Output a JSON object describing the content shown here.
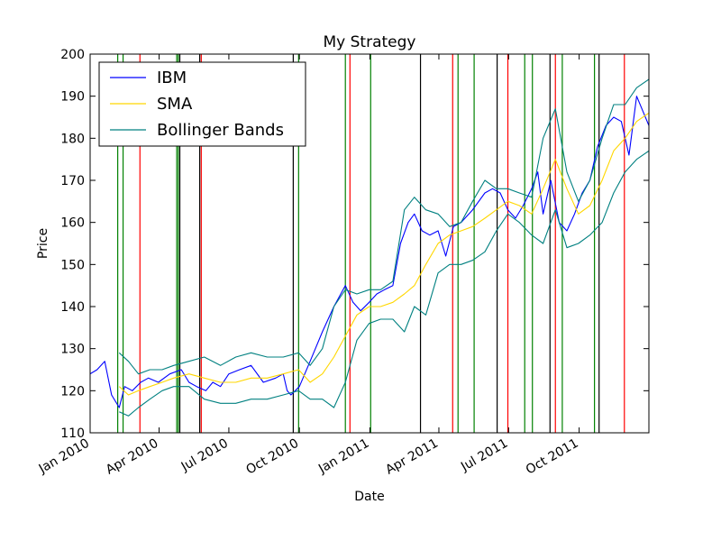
{
  "chart_data": {
    "type": "line",
    "title": "My Strategy",
    "xlabel": "Date",
    "ylabel": "Price",
    "x_range": [
      "2010-01-01",
      "2011-12-31"
    ],
    "ylim": [
      110,
      200
    ],
    "y_ticks": [
      110,
      120,
      130,
      140,
      150,
      160,
      170,
      180,
      190,
      200
    ],
    "x_ticks": [
      {
        "date": "2010-01-01",
        "label": "Jan 2010"
      },
      {
        "date": "2010-04-01",
        "label": "Apr 2010"
      },
      {
        "date": "2010-07-01",
        "label": "Jul 2010"
      },
      {
        "date": "2010-10-01",
        "label": "Oct 2010"
      },
      {
        "date": "2011-01-01",
        "label": "Jan 2011"
      },
      {
        "date": "2011-04-01",
        "label": "Apr 2011"
      },
      {
        "date": "2011-07-01",
        "label": "Jul 2011"
      },
      {
        "date": "2011-10-01",
        "label": "Oct 2011"
      }
    ],
    "grid": false,
    "legend_position": "top-left",
    "legend": [
      "IBM",
      "SMA",
      "Bollinger Bands"
    ],
    "colors": {
      "ibm": "#0000ff",
      "sma": "#ffd700",
      "bands": "#008080",
      "long_entry": "#008000",
      "short_entry": "#ff0000",
      "exit": "#000000"
    },
    "series": [
      {
        "name": "IBM",
        "x": [
          "2010-01-01",
          "2010-01-10",
          "2010-01-20",
          "2010-01-29",
          "2010-02-08",
          "2010-02-15",
          "2010-02-25",
          "2010-03-08",
          "2010-03-18",
          "2010-03-31",
          "2010-04-15",
          "2010-04-30",
          "2010-05-10",
          "2010-05-20",
          "2010-06-01",
          "2010-06-10",
          "2010-06-20",
          "2010-07-01",
          "2010-07-15",
          "2010-07-30",
          "2010-08-15",
          "2010-08-31",
          "2010-09-10",
          "2010-09-15",
          "2010-09-20",
          "2010-10-01",
          "2010-10-15",
          "2010-10-31",
          "2010-11-15",
          "2010-11-30",
          "2010-12-10",
          "2010-12-20",
          "2010-12-31",
          "2011-01-10",
          "2011-01-20",
          "2011-01-31",
          "2011-02-10",
          "2011-02-20",
          "2011-02-28",
          "2011-03-10",
          "2011-03-20",
          "2011-03-31",
          "2011-04-10",
          "2011-04-20",
          "2011-04-30",
          "2011-05-15",
          "2011-05-31",
          "2011-06-10",
          "2011-06-20",
          "2011-06-30",
          "2011-07-10",
          "2011-07-20",
          "2011-07-31",
          "2011-08-08",
          "2011-08-15",
          "2011-08-25",
          "2011-09-05",
          "2011-09-15",
          "2011-09-25",
          "2011-10-05",
          "2011-10-15",
          "2011-10-25",
          "2011-11-05",
          "2011-11-15",
          "2011-11-25",
          "2011-12-05",
          "2011-12-15",
          "2011-12-31"
        ],
        "y": [
          124,
          125,
          127,
          119,
          116,
          121,
          120,
          122,
          123,
          122,
          124,
          125,
          122,
          121,
          120,
          122,
          121,
          124,
          125,
          126,
          122,
          123,
          124,
          120,
          119,
          121,
          127,
          134,
          140,
          145,
          141,
          139,
          141,
          143,
          144,
          145,
          155,
          160,
          162,
          158,
          157,
          158,
          152,
          159,
          160,
          163,
          167,
          168,
          167,
          163,
          161,
          164,
          168,
          172,
          162,
          170,
          160,
          158,
          162,
          167,
          170,
          178,
          183,
          185,
          184,
          176,
          190,
          183
        ]
      },
      {
        "name": "SMA",
        "x": [
          "2010-02-08",
          "2010-02-20",
          "2010-03-05",
          "2010-03-20",
          "2010-04-05",
          "2010-04-20",
          "2010-05-10",
          "2010-05-30",
          "2010-06-20",
          "2010-07-10",
          "2010-07-30",
          "2010-08-20",
          "2010-09-10",
          "2010-09-30",
          "2010-10-15",
          "2010-10-31",
          "2010-11-15",
          "2010-11-30",
          "2010-12-15",
          "2010-12-31",
          "2011-01-15",
          "2011-01-31",
          "2011-02-15",
          "2011-02-28",
          "2011-03-15",
          "2011-03-31",
          "2011-04-15",
          "2011-04-30",
          "2011-05-15",
          "2011-05-31",
          "2011-06-15",
          "2011-06-30",
          "2011-07-15",
          "2011-07-31",
          "2011-08-15",
          "2011-08-31",
          "2011-09-15",
          "2011-09-30",
          "2011-10-15",
          "2011-10-31",
          "2011-11-15",
          "2011-11-30",
          "2011-12-15",
          "2011-12-31"
        ],
        "y": [
          121,
          119,
          120,
          121,
          122,
          123,
          124,
          123,
          122,
          122,
          123,
          123,
          124,
          125,
          122,
          124,
          128,
          133,
          138,
          140,
          140,
          141,
          143,
          145,
          150,
          155,
          157,
          158,
          159,
          161,
          163,
          165,
          164,
          162,
          168,
          175,
          168,
          162,
          164,
          170,
          177,
          180,
          184,
          186
        ]
      },
      {
        "name": "Bollinger Bands",
        "x": [
          "2010-02-08",
          "2010-02-20",
          "2010-03-05",
          "2010-03-20",
          "2010-04-05",
          "2010-04-20",
          "2010-05-10",
          "2010-05-30",
          "2010-06-20",
          "2010-07-10",
          "2010-07-30",
          "2010-08-20",
          "2010-09-10",
          "2010-09-30",
          "2010-10-15",
          "2010-10-31",
          "2010-11-15",
          "2010-11-30",
          "2010-12-15",
          "2010-12-31",
          "2011-01-15",
          "2011-01-31",
          "2011-02-15",
          "2011-02-28",
          "2011-03-15",
          "2011-03-31",
          "2011-04-15",
          "2011-04-30",
          "2011-05-15",
          "2011-05-31",
          "2011-06-15",
          "2011-06-30",
          "2011-07-15",
          "2011-07-31",
          "2011-08-15",
          "2011-08-31",
          "2011-09-15",
          "2011-09-30",
          "2011-10-15",
          "2011-10-31",
          "2011-11-15",
          "2011-11-30",
          "2011-12-15",
          "2011-12-31"
        ],
        "y": [
          129,
          127,
          124,
          125,
          125,
          126,
          127,
          128,
          126,
          128,
          129,
          128,
          128,
          129,
          126,
          130,
          140,
          144,
          143,
          144,
          144,
          146,
          163,
          166,
          163,
          162,
          159,
          160,
          165,
          170,
          168,
          168,
          167,
          166,
          180,
          187,
          172,
          165,
          170,
          180,
          188,
          188,
          192,
          194
        ]
      },
      {
        "name": "",
        "x": [
          "2010-02-08",
          "2010-02-20",
          "2010-03-05",
          "2010-03-20",
          "2010-04-05",
          "2010-04-20",
          "2010-05-10",
          "2010-05-30",
          "2010-06-20",
          "2010-07-10",
          "2010-07-30",
          "2010-08-20",
          "2010-09-10",
          "2010-09-30",
          "2010-10-15",
          "2010-10-31",
          "2010-11-15",
          "2010-11-30",
          "2010-12-15",
          "2010-12-31",
          "2011-01-15",
          "2011-01-31",
          "2011-02-15",
          "2011-02-28",
          "2011-03-15",
          "2011-03-31",
          "2011-04-15",
          "2011-04-30",
          "2011-05-15",
          "2011-05-31",
          "2011-06-15",
          "2011-06-30",
          "2011-07-15",
          "2011-07-31",
          "2011-08-15",
          "2011-08-31",
          "2011-09-15",
          "2011-09-30",
          "2011-10-15",
          "2011-10-31",
          "2011-11-15",
          "2011-11-30",
          "2011-12-15",
          "2011-12-31"
        ],
        "y": [
          115,
          114,
          116,
          118,
          120,
          121,
          121,
          118,
          117,
          117,
          118,
          118,
          119,
          120,
          118,
          118,
          116,
          122,
          132,
          136,
          137,
          137,
          134,
          140,
          138,
          148,
          150,
          150,
          151,
          153,
          158,
          162,
          160,
          157,
          155,
          163,
          154,
          155,
          157,
          160,
          167,
          172,
          175,
          177
        ]
      }
    ],
    "vlines": [
      {
        "date": "2010-02-06",
        "type": "long_entry"
      },
      {
        "date": "2010-02-13",
        "type": "long_entry"
      },
      {
        "date": "2010-03-07",
        "type": "short_entry"
      },
      {
        "date": "2010-04-24",
        "type": "long_entry"
      },
      {
        "date": "2010-04-26",
        "type": "long_entry"
      },
      {
        "date": "2010-04-28",
        "type": "exit"
      },
      {
        "date": "2010-05-24",
        "type": "exit"
      },
      {
        "date": "2010-05-26",
        "type": "short_entry"
      },
      {
        "date": "2010-09-23",
        "type": "exit"
      },
      {
        "date": "2010-09-30",
        "type": "long_entry"
      },
      {
        "date": "2010-11-30",
        "type": "long_entry"
      },
      {
        "date": "2010-12-06",
        "type": "short_entry"
      },
      {
        "date": "2011-01-02",
        "type": "long_entry"
      },
      {
        "date": "2011-03-08",
        "type": "exit"
      },
      {
        "date": "2011-04-19",
        "type": "short_entry"
      },
      {
        "date": "2011-04-26",
        "type": "long_entry"
      },
      {
        "date": "2011-05-17",
        "type": "long_entry"
      },
      {
        "date": "2011-06-16",
        "type": "exit"
      },
      {
        "date": "2011-06-30",
        "type": "short_entry"
      },
      {
        "date": "2011-07-22",
        "type": "long_entry"
      },
      {
        "date": "2011-08-01",
        "type": "long_entry"
      },
      {
        "date": "2011-08-24",
        "type": "exit"
      },
      {
        "date": "2011-08-31",
        "type": "short_entry"
      },
      {
        "date": "2011-09-09",
        "type": "long_entry"
      },
      {
        "date": "2011-10-21",
        "type": "long_entry"
      },
      {
        "date": "2011-10-27",
        "type": "exit"
      },
      {
        "date": "2011-11-29",
        "type": "short_entry"
      }
    ]
  }
}
